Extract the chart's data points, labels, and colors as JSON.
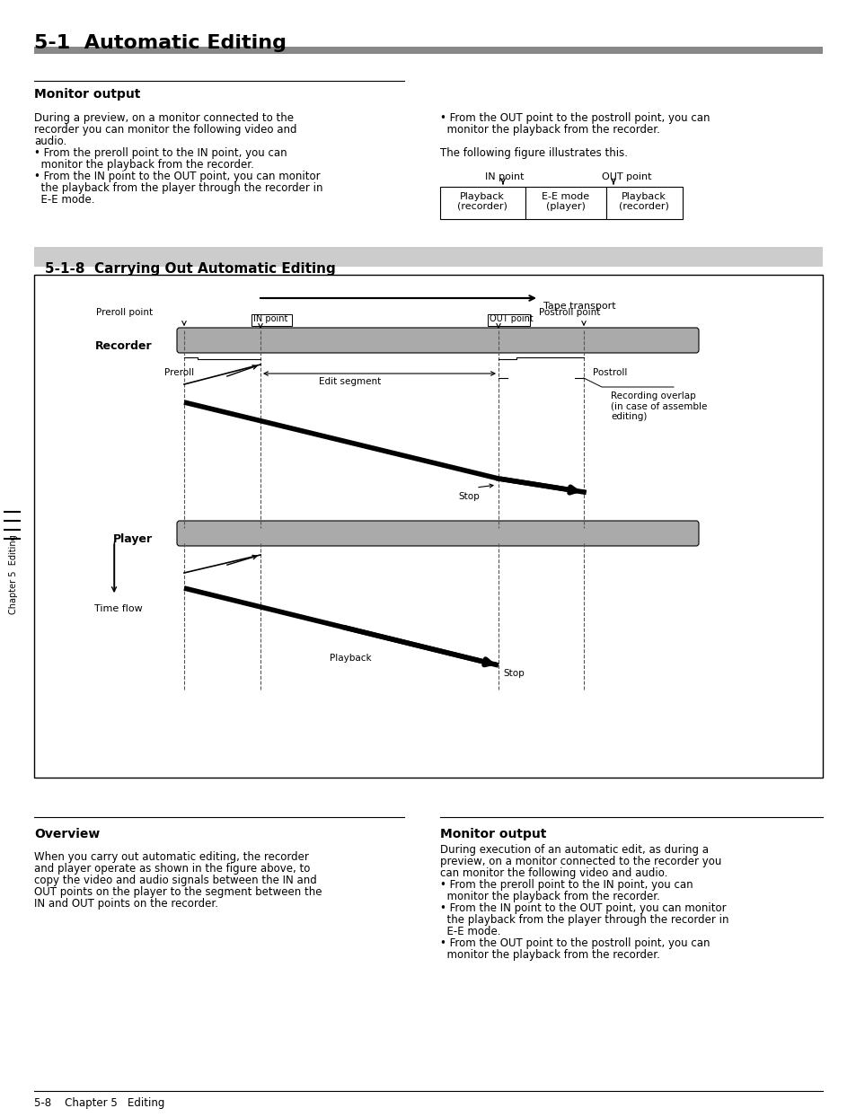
{
  "page_bg": "#ffffff",
  "title_section": "5-1  Automatic Editing",
  "title_bar_color": "#888888",
  "section_subtitle": "5-1-8  Carrying Out Automatic Editing",
  "section_subtitle_bg": "#cccccc",
  "monitor_output_heading": "Monitor output",
  "monitor_output_text_left": [
    "During a preview, on a monitor connected to the",
    "recorder you can monitor the following video and",
    "audio.",
    "• From the preroll point to the IN point, you can",
    "  monitor the playback from the recorder.",
    "• From the IN point to the OUT point, you can monitor",
    "  the playback from the player through the recorder in",
    "  E-E mode."
  ],
  "monitor_output_text_right": [
    "• From the OUT point to the postroll point, you can",
    "  monitor the playback from the recorder.",
    "",
    "The following figure illustrates this."
  ],
  "table_headers": [
    "IN point",
    "OUT point"
  ],
  "table_cells": [
    [
      "Playback\n(recorder)",
      "E-E mode\n(player)",
      "Playback\n(recorder)"
    ]
  ],
  "overview_heading": "Overview",
  "overview_text": [
    "When you carry out automatic editing, the recorder",
    "and player operate as shown in the figure above, to",
    "copy the video and audio signals between the IN and",
    "OUT points on the player to the segment between the",
    "IN and OUT points on the recorder."
  ],
  "monitor_output2_heading": "Monitor output",
  "monitor_output2_text": [
    "During execution of an automatic edit, as during a",
    "preview, on a monitor connected to the recorder you",
    "can monitor the following video and audio.",
    "• From the preroll point to the IN point, you can",
    "  monitor the playback from the recorder.",
    "• From the IN point to the OUT point, you can monitor",
    "  the playback from the player through the recorder in",
    "  E-E mode.",
    "• From the OUT point to the postroll point, you can",
    "  monitor the playback from the recorder."
  ],
  "footer_text": "5-8    Chapter 5   Editing",
  "diagram_tape_transport_label": "Tape transport",
  "diagram_recorder_label": "Recorder",
  "diagram_player_label": "Player",
  "diagram_preroll_point_label": "Preroll point",
  "diagram_in_point_label": "IN point",
  "diagram_out_point_label": "OUT point",
  "diagram_postroll_point_label": "Postroll point",
  "diagram_preroll_label": "Preroll",
  "diagram_postroll_label": "Postroll",
  "diagram_edit_segment_label": "Edit segment",
  "diagram_stop_label1": "Stop",
  "diagram_stop_label2": "Stop",
  "diagram_playback_label": "Playback",
  "diagram_recording_overlap_label": "Recording overlap\n(in case of assemble\nediting)",
  "diagram_time_flow_label": "Time flow",
  "tape_bar_color": "#aaaaaa",
  "dashed_line_color": "#333333"
}
